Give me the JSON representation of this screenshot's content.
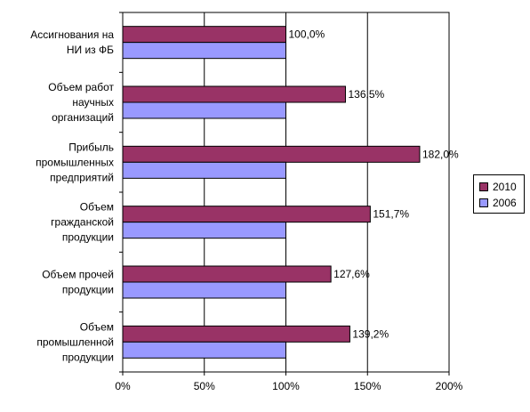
{
  "chart_data": {
    "type": "bar",
    "orientation": "horizontal",
    "categories": [
      [
        "Ассигнования на",
        "НИ из ФБ"
      ],
      [
        "Объем работ",
        "научных",
        "организаций"
      ],
      [
        "Прибыль",
        "промышленных",
        "предприятий"
      ],
      [
        "Объем",
        "гражданской",
        "продукции"
      ],
      [
        "Объем прочей",
        "продукции"
      ],
      [
        "Объем",
        "промышленной",
        "продукции"
      ]
    ],
    "series": [
      {
        "name": "2010",
        "color": "#993366",
        "values": [
          100.0,
          136.5,
          182.0,
          151.7,
          127.6,
          139.2
        ],
        "labels": [
          "100,0%",
          "136,5%",
          "182,0%",
          "151,7%",
          "127,6%",
          "139,2%"
        ]
      },
      {
        "name": "2006",
        "color": "#9999FF",
        "values": [
          100,
          100,
          100,
          100,
          100,
          100
        ]
      }
    ],
    "xlim": [
      0,
      200
    ],
    "x_ticks": [
      "0%",
      "50%",
      "100%",
      "150%",
      "200%"
    ],
    "grid": "vertical",
    "legend": "right"
  }
}
